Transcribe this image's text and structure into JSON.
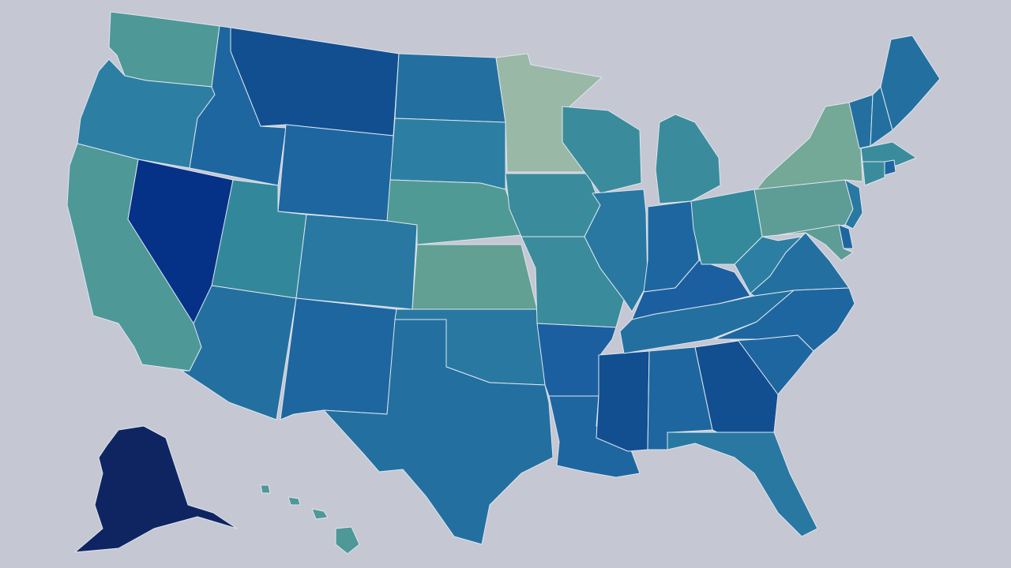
{
  "map": {
    "background_color": "#c5c7d3",
    "border_color": "#dfe6ee"
  },
  "states": [
    {
      "code": "WA",
      "color": "#4e9898"
    },
    {
      "code": "OR",
      "color": "#2d7ea3"
    },
    {
      "code": "CA",
      "color": "#4e9898"
    },
    {
      "code": "NV",
      "color": "#053286"
    },
    {
      "code": "ID",
      "color": "#1e66a0"
    },
    {
      "code": "MT",
      "color": "#124f91"
    },
    {
      "code": "WY",
      "color": "#1e66a0"
    },
    {
      "code": "UT",
      "color": "#33879a"
    },
    {
      "code": "AZ",
      "color": "#2370a0"
    },
    {
      "code": "CO",
      "color": "#2878a2"
    },
    {
      "code": "NM",
      "color": "#1e66a0"
    },
    {
      "code": "ND",
      "color": "#2370a0"
    },
    {
      "code": "SD",
      "color": "#2d7ea3"
    },
    {
      "code": "NE",
      "color": "#509a96"
    },
    {
      "code": "KS",
      "color": "#62a094"
    },
    {
      "code": "OK",
      "color": "#2878a2"
    },
    {
      "code": "TX",
      "color": "#2370a0"
    },
    {
      "code": "MN",
      "color": "#9ab8a6"
    },
    {
      "code": "IA",
      "color": "#3a8c9c"
    },
    {
      "code": "MO",
      "color": "#3a8c9c"
    },
    {
      "code": "AR",
      "color": "#1c5fa0"
    },
    {
      "code": "LA",
      "color": "#1e66a0"
    },
    {
      "code": "WI",
      "color": "#3a8c9c"
    },
    {
      "code": "IL",
      "color": "#2878a2"
    },
    {
      "code": "MS",
      "color": "#124f91"
    },
    {
      "code": "MI",
      "color": "#3a8c9c"
    },
    {
      "code": "IN",
      "color": "#1e66a0"
    },
    {
      "code": "KY",
      "color": "#1c5fa0"
    },
    {
      "code": "TN",
      "color": "#2370a0"
    },
    {
      "code": "AL",
      "color": "#1e66a0"
    },
    {
      "code": "OH",
      "color": "#348a9a"
    },
    {
      "code": "GA",
      "color": "#124f91"
    },
    {
      "code": "FL",
      "color": "#2878a2"
    },
    {
      "code": "WV",
      "color": "#2d7ea3"
    },
    {
      "code": "VA",
      "color": "#2370a0"
    },
    {
      "code": "NC",
      "color": "#1e66a0"
    },
    {
      "code": "SC",
      "color": "#1e66a0"
    },
    {
      "code": "PA",
      "color": "#5e9c96"
    },
    {
      "code": "NY",
      "color": "#74a897"
    },
    {
      "code": "NJ",
      "color": "#2878a2"
    },
    {
      "code": "DE",
      "color": "#1e66a0"
    },
    {
      "code": "MD",
      "color": "#5e9c96"
    },
    {
      "code": "VT",
      "color": "#2370a0"
    },
    {
      "code": "NH",
      "color": "#2370a0"
    },
    {
      "code": "ME",
      "color": "#2370a0"
    },
    {
      "code": "MA",
      "color": "#3a8c9c"
    },
    {
      "code": "CT",
      "color": "#3a8c9c"
    },
    {
      "code": "RI",
      "color": "#1e66a0"
    },
    {
      "code": "AK",
      "color": "#0f2562"
    },
    {
      "code": "HI",
      "color": "#4e9898"
    }
  ]
}
